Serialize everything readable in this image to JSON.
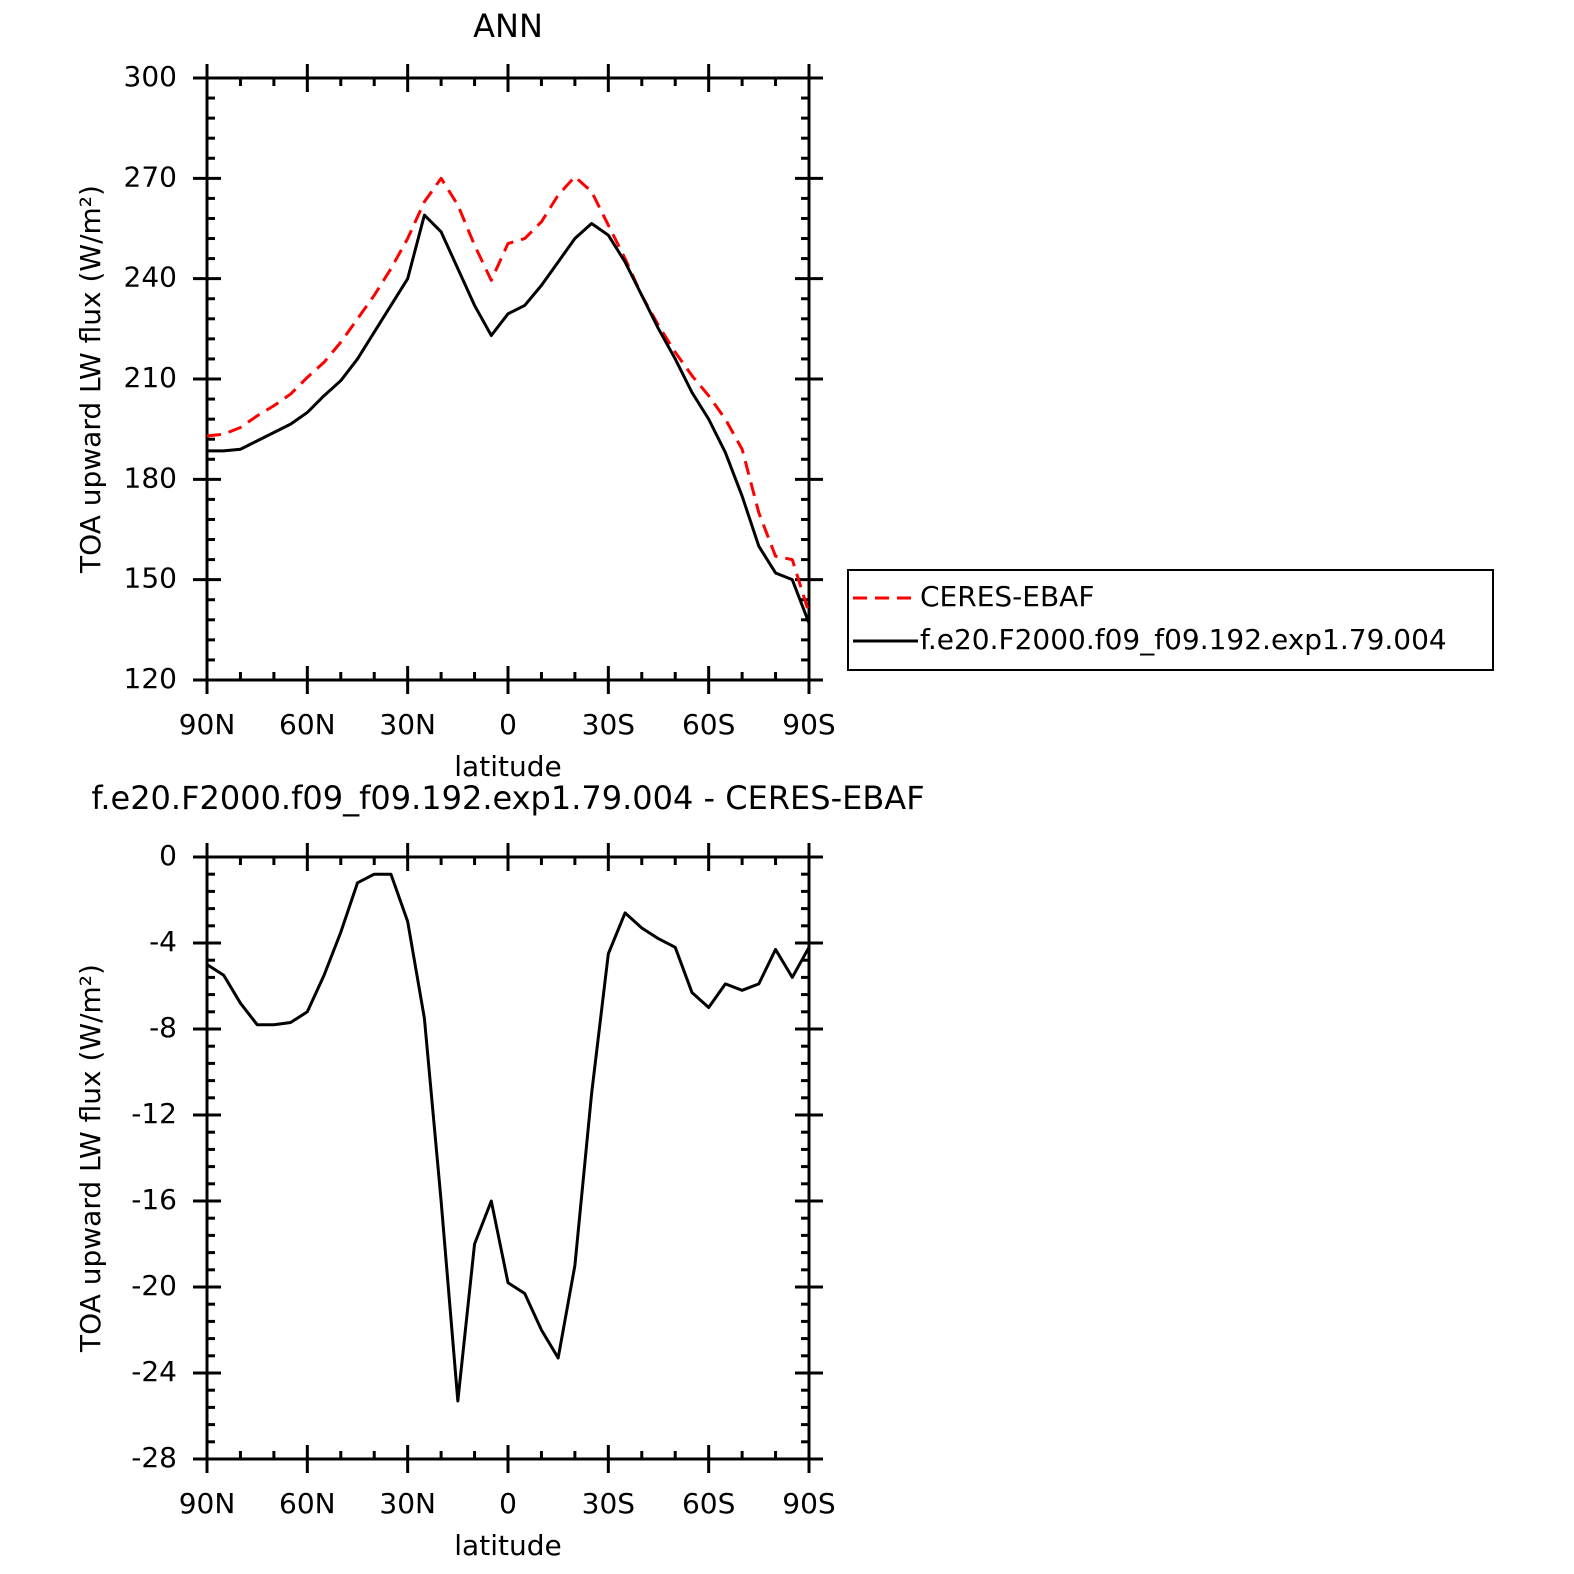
{
  "chart_data": [
    {
      "type": "line",
      "title": "ANN",
      "xlabel": "latitude",
      "ylabel": "TOA upward LW flux (W/m²)",
      "x": [
        90,
        85,
        80,
        75,
        70,
        65,
        60,
        55,
        50,
        45,
        40,
        35,
        30,
        25,
        20,
        15,
        10,
        5,
        0,
        -5,
        -10,
        -15,
        -20,
        -25,
        -30,
        -35,
        -40,
        -45,
        -50,
        -55,
        -60,
        -65,
        -70,
        -75,
        -80,
        -85,
        -90
      ],
      "series": [
        {
          "name": "CERES-EBAF",
          "color": "#ff0000",
          "dashed": true,
          "values": [
            193,
            193.5,
            195.5,
            199,
            202,
            205.5,
            210.5,
            215,
            221,
            228,
            235,
            243,
            252,
            263,
            270,
            262,
            250,
            239.5,
            250.5,
            252,
            257,
            265,
            270.5,
            266,
            256,
            246,
            235,
            226,
            218,
            211,
            205,
            198,
            189,
            170,
            157,
            156,
            140
          ]
        },
        {
          "name": "f.e20.F2000.f09_f09.192.exp1.79.004",
          "color": "#000000",
          "dashed": false,
          "values": [
            188.5,
            188.5,
            189,
            191.5,
            194,
            196.5,
            200,
            205,
            209.5,
            216,
            224,
            232,
            240,
            259,
            254,
            243,
            232,
            223,
            229.5,
            232,
            238,
            245,
            252,
            256.5,
            253,
            245,
            235,
            225,
            216,
            206,
            198,
            188,
            175,
            160,
            152,
            150,
            137
          ]
        }
      ],
      "xlim": [
        90,
        -90
      ],
      "xticks": [
        {
          "value": 90,
          "label": "90N"
        },
        {
          "value": 60,
          "label": "60N"
        },
        {
          "value": 30,
          "label": "30N"
        },
        0,
        {
          "value": -30,
          "label": "30S"
        },
        {
          "value": -60,
          "label": "60S"
        },
        {
          "value": -90,
          "label": "90S"
        }
      ],
      "ylim": [
        120,
        300
      ],
      "yticks": [
        120,
        150,
        180,
        210,
        240,
        270,
        300
      ],
      "legend": "right"
    },
    {
      "type": "line",
      "title": "f.e20.F2000.f09_f09.192.exp1.79.004 - CERES-EBAF",
      "xlabel": "latitude",
      "ylabel": "TOA upward LW flux (W/m²)",
      "x": [
        90,
        85,
        80,
        75,
        70,
        65,
        60,
        55,
        50,
        45,
        40,
        35,
        30,
        25,
        20,
        15,
        10,
        5,
        0,
        -5,
        -10,
        -15,
        -20,
        -25,
        -30,
        -35,
        -40,
        -45,
        -50,
        -55,
        -60,
        -65,
        -70,
        -75,
        -80,
        -85,
        -90
      ],
      "series": [
        {
          "color": "#000000",
          "dashed": false,
          "values": [
            -5,
            -5.5,
            -6.8,
            -7.8,
            -7.8,
            -7.7,
            -7.2,
            -5.5,
            -3.5,
            -1.2,
            -0.8,
            -0.8,
            -3,
            -7.5,
            -16,
            -25.3,
            -18,
            -16,
            -19.8,
            -20.3,
            -22,
            -23.3,
            -19,
            -11,
            -4.5,
            -2.6,
            -3.3,
            -3.8,
            -4.2,
            -6.3,
            -7,
            -5.9,
            -6.2,
            -5.9,
            -4.3,
            -5.6,
            -4.2
          ]
        }
      ],
      "xlim": [
        90,
        -90
      ],
      "xticks": [
        {
          "value": 90,
          "label": "90N"
        },
        {
          "value": 60,
          "label": "60N"
        },
        {
          "value": 30,
          "label": "30N"
        },
        0,
        {
          "value": -30,
          "label": "30S"
        },
        {
          "value": -60,
          "label": "60S"
        },
        {
          "value": -90,
          "label": "90S"
        }
      ],
      "ylim": [
        -28,
        0
      ],
      "yticks": [
        -28,
        -24,
        -20,
        -16,
        -12,
        -8,
        -4,
        0
      ]
    }
  ]
}
